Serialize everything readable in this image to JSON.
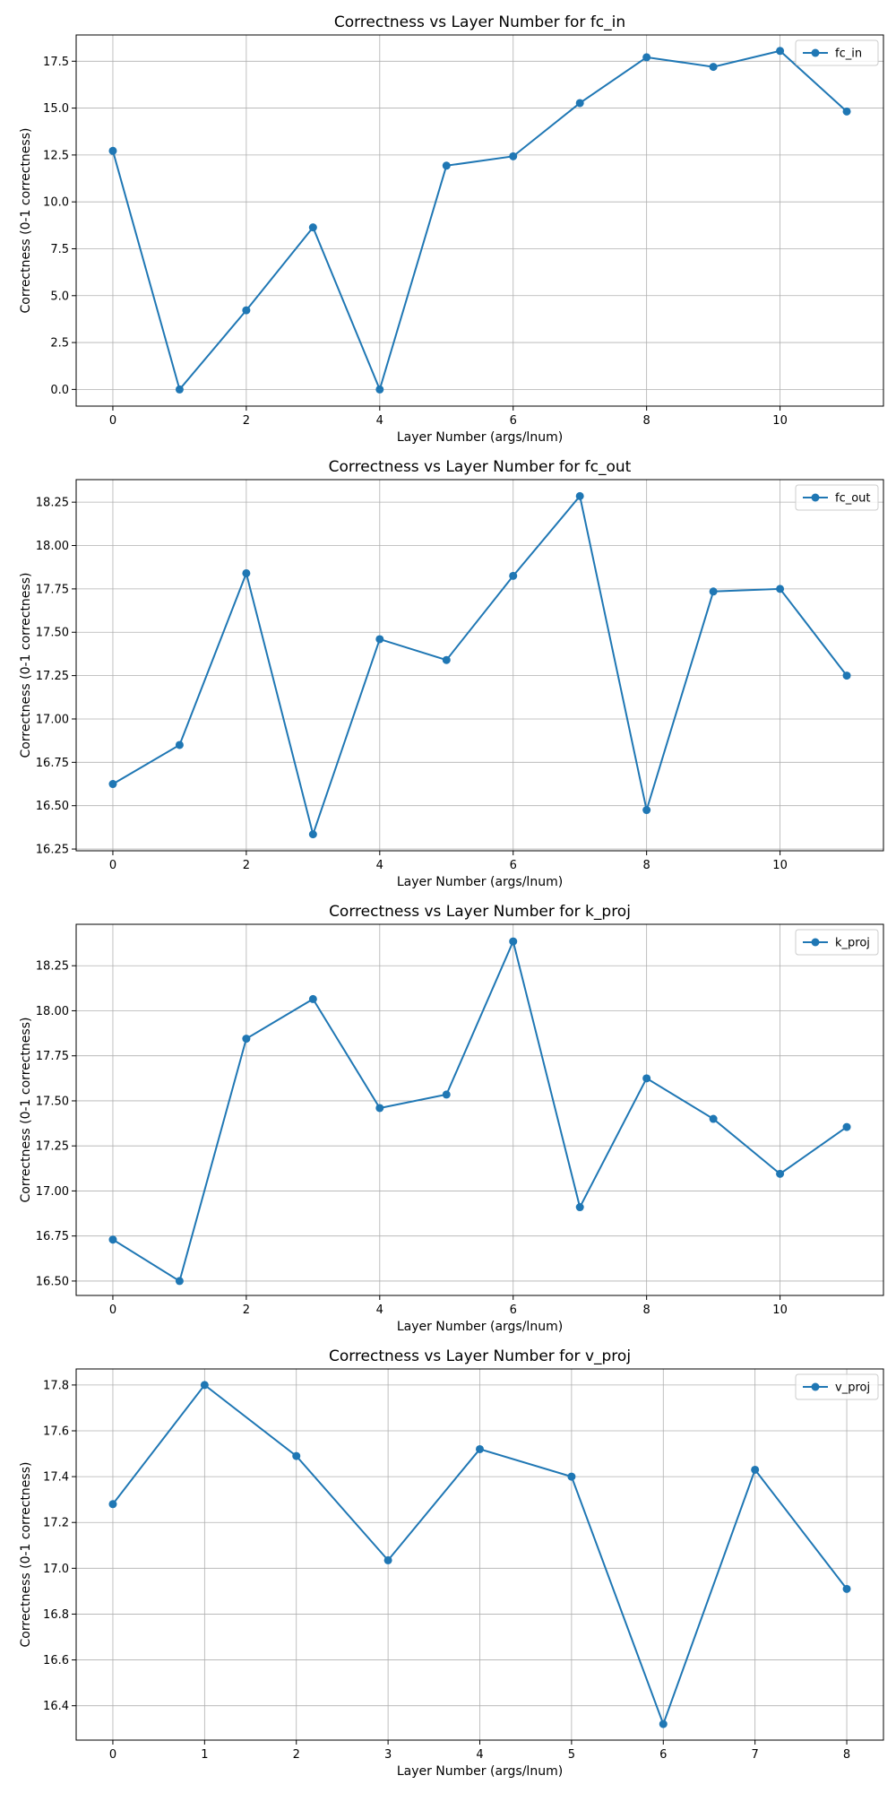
{
  "chart_data": [
    {
      "type": "line",
      "title": "Correctness vs Layer Number for fc_in",
      "xlabel": "Layer Number (args/lnum)",
      "ylabel": "Correctness (0-1 correctness)",
      "xlim": [
        -0.55,
        11.55
      ],
      "ylim": [
        -0.89,
        18.9
      ],
      "xticks": [
        0,
        2,
        4,
        6,
        8,
        10
      ],
      "xtick_labels": [
        "0",
        "2",
        "4",
        "6",
        "8",
        "10"
      ],
      "yticks": [
        0.0,
        2.5,
        5.0,
        7.5,
        10.0,
        12.5,
        15.0,
        17.5
      ],
      "ytick_labels": [
        "0.0",
        "2.5",
        "5.0",
        "7.5",
        "10.0",
        "12.5",
        "15.0",
        "17.5"
      ],
      "grid": true,
      "legend_position": "top-right",
      "series": [
        {
          "name": "fc_in",
          "color": "#1f77b4",
          "x": [
            0,
            1,
            2,
            3,
            4,
            5,
            6,
            7,
            8,
            9,
            10,
            11
          ],
          "y": [
            12.72,
            0.0,
            4.22,
            8.64,
            0.0,
            11.93,
            12.43,
            15.27,
            17.71,
            17.2,
            18.05,
            14.82
          ]
        }
      ]
    },
    {
      "type": "line",
      "title": "Correctness vs Layer Number for fc_out",
      "xlabel": "Layer Number (args/lnum)",
      "ylabel": "Correctness (0-1 correctness)",
      "xlim": [
        -0.55,
        11.55
      ],
      "ylim": [
        16.24,
        18.38
      ],
      "xticks": [
        0,
        2,
        4,
        6,
        8,
        10
      ],
      "xtick_labels": [
        "0",
        "2",
        "4",
        "6",
        "8",
        "10"
      ],
      "yticks": [
        16.25,
        16.5,
        16.75,
        17.0,
        17.25,
        17.5,
        17.75,
        18.0,
        18.25
      ],
      "ytick_labels": [
        "16.25",
        "16.50",
        "16.75",
        "17.00",
        "17.25",
        "17.50",
        "17.75",
        "18.00",
        "18.25"
      ],
      "grid": true,
      "legend_position": "top-right",
      "series": [
        {
          "name": "fc_out",
          "color": "#1f77b4",
          "x": [
            0,
            1,
            2,
            3,
            4,
            5,
            6,
            7,
            8,
            9,
            10,
            11
          ],
          "y": [
            16.625,
            16.85,
            17.84,
            16.335,
            17.46,
            17.34,
            17.825,
            18.285,
            16.475,
            17.735,
            17.75,
            17.25
          ]
        }
      ]
    },
    {
      "type": "line",
      "title": "Correctness vs Layer Number for k_proj",
      "xlabel": "Layer Number (args/lnum)",
      "ylabel": "Correctness (0-1 correctness)",
      "xlim": [
        -0.55,
        11.55
      ],
      "ylim": [
        16.42,
        18.48
      ],
      "xticks": [
        0,
        2,
        4,
        6,
        8,
        10
      ],
      "xtick_labels": [
        "0",
        "2",
        "4",
        "6",
        "8",
        "10"
      ],
      "yticks": [
        16.5,
        16.75,
        17.0,
        17.25,
        17.5,
        17.75,
        18.0,
        18.25
      ],
      "ytick_labels": [
        "16.50",
        "16.75",
        "17.00",
        "17.25",
        "17.50",
        "17.75",
        "18.00",
        "18.25"
      ],
      "grid": true,
      "legend_position": "top-right",
      "series": [
        {
          "name": "k_proj",
          "color": "#1f77b4",
          "x": [
            0,
            1,
            2,
            3,
            4,
            5,
            6,
            7,
            8,
            9,
            10,
            11
          ],
          "y": [
            16.73,
            16.5,
            17.845,
            18.065,
            17.46,
            17.535,
            18.385,
            16.91,
            17.625,
            17.4,
            17.095,
            17.355
          ]
        }
      ]
    },
    {
      "type": "line",
      "title": "Correctness vs Layer Number for v_proj",
      "xlabel": "Layer Number (args/lnum)",
      "ylabel": "Correctness (0-1 correctness)",
      "xlim": [
        -0.4,
        8.4
      ],
      "ylim": [
        16.25,
        17.87
      ],
      "xticks": [
        0,
        1,
        2,
        3,
        4,
        5,
        6,
        7,
        8
      ],
      "xtick_labels": [
        "0",
        "1",
        "2",
        "3",
        "4",
        "5",
        "6",
        "7",
        "8"
      ],
      "yticks": [
        16.4,
        16.6,
        16.8,
        17.0,
        17.2,
        17.4,
        17.6,
        17.8
      ],
      "ytick_labels": [
        "16.4",
        "16.6",
        "16.8",
        "17.0",
        "17.2",
        "17.4",
        "17.6",
        "17.8"
      ],
      "grid": true,
      "legend_position": "top-right",
      "series": [
        {
          "name": "v_proj",
          "color": "#1f77b4",
          "x": [
            0,
            1,
            2,
            3,
            4,
            5,
            6,
            7,
            8
          ],
          "y": [
            17.28,
            17.8,
            17.49,
            17.035,
            17.52,
            17.4,
            16.32,
            17.43,
            16.91
          ]
        }
      ]
    }
  ]
}
